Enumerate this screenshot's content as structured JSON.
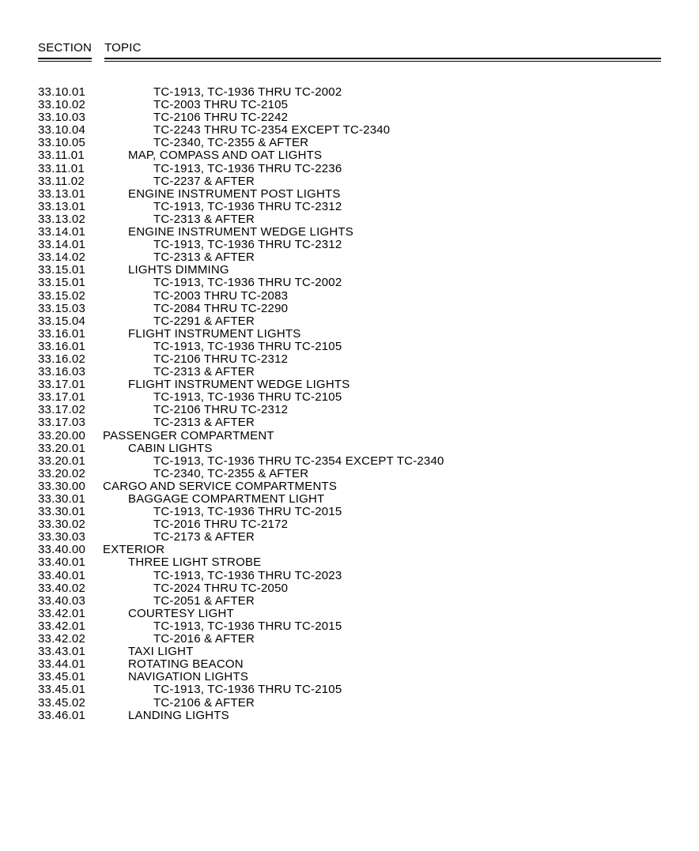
{
  "header": {
    "section_label": "SECTION",
    "topic_label": "TOPIC"
  },
  "font": {
    "family": "Arial Narrow",
    "size_pt": 11,
    "color": "#000000",
    "background": "#ffffff"
  },
  "rows": [
    {
      "section": "33.10.01",
      "indent": 2,
      "topic": "TC-1913, TC-1936 THRU TC-2002"
    },
    {
      "section": "33.10.02",
      "indent": 2,
      "topic": "TC-2003 THRU TC-2105"
    },
    {
      "section": "33.10.03",
      "indent": 2,
      "topic": "TC-2106 THRU TC-2242"
    },
    {
      "section": "33.10.04",
      "indent": 2,
      "topic": "TC-2243 THRU TC-2354 EXCEPT TC-2340"
    },
    {
      "section": "33.10.05",
      "indent": 2,
      "topic": "TC-2340, TC-2355 & AFTER"
    },
    {
      "section": "33.11.01",
      "indent": 1,
      "topic": "MAP, COMPASS AND OAT LIGHTS"
    },
    {
      "section": "33.11.01",
      "indent": 2,
      "topic": "TC-1913, TC-1936 THRU TC-2236"
    },
    {
      "section": "33.11.02",
      "indent": 2,
      "topic": "TC-2237 & AFTER"
    },
    {
      "section": "33.13.01",
      "indent": 1,
      "topic": "ENGINE INSTRUMENT POST LIGHTS"
    },
    {
      "section": "33.13.01",
      "indent": 2,
      "topic": "TC-1913, TC-1936 THRU TC-2312"
    },
    {
      "section": "33.13.02",
      "indent": 2,
      "topic": "TC-2313 & AFTER"
    },
    {
      "section": "33.14.01",
      "indent": 1,
      "topic": "ENGINE INSTRUMENT WEDGE LIGHTS"
    },
    {
      "section": "33.14.01",
      "indent": 2,
      "topic": "TC-1913, TC-1936 THRU TC-2312"
    },
    {
      "section": "33.14.02",
      "indent": 2,
      "topic": "TC-2313 & AFTER"
    },
    {
      "section": "33.15.01",
      "indent": 1,
      "topic": "LIGHTS DIMMING"
    },
    {
      "section": "33.15.01",
      "indent": 2,
      "topic": "TC-1913, TC-1936 THRU TC-2002"
    },
    {
      "section": "33.15.02",
      "indent": 2,
      "topic": "TC-2003 THRU TC-2083"
    },
    {
      "section": "33.15.03",
      "indent": 2,
      "topic": "TC-2084 THRU TC-2290"
    },
    {
      "section": "33.15.04",
      "indent": 2,
      "topic": "TC-2291 & AFTER"
    },
    {
      "section": "33.16.01",
      "indent": 1,
      "topic": "FLIGHT INSTRUMENT LIGHTS"
    },
    {
      "section": "33.16.01",
      "indent": 2,
      "topic": "TC-1913, TC-1936 THRU TC-2105"
    },
    {
      "section": "33.16.02",
      "indent": 2,
      "topic": "TC-2106 THRU TC-2312"
    },
    {
      "section": "33.16.03",
      "indent": 2,
      "topic": "TC-2313 & AFTER"
    },
    {
      "section": "33.17.01",
      "indent": 1,
      "topic": "FLIGHT INSTRUMENT WEDGE LIGHTS"
    },
    {
      "section": "33.17.01",
      "indent": 2,
      "topic": "TC-1913, TC-1936 THRU TC-2105"
    },
    {
      "section": "33.17.02",
      "indent": 2,
      "topic": "TC-2106 THRU TC-2312"
    },
    {
      "section": "33.17.03",
      "indent": 2,
      "topic": "TC-2313 & AFTER"
    },
    {
      "section": "33.20.00",
      "indent": 0,
      "topic": "PASSENGER COMPARTMENT"
    },
    {
      "section": "33.20.01",
      "indent": 1,
      "topic": "CABIN LIGHTS"
    },
    {
      "section": "33.20.01",
      "indent": 2,
      "topic": "TC-1913, TC-1936 THRU TC-2354 EXCEPT TC-2340"
    },
    {
      "section": "33.20.02",
      "indent": 2,
      "topic": "TC-2340, TC-2355 & AFTER"
    },
    {
      "section": "33.30.00",
      "indent": 0,
      "topic": "CARGO AND SERVICE COMPARTMENTS"
    },
    {
      "section": "33.30.01",
      "indent": 1,
      "topic": "BAGGAGE COMPARTMENT LIGHT"
    },
    {
      "section": "33.30.01",
      "indent": 2,
      "topic": "TC-1913, TC-1936 THRU TC-2015"
    },
    {
      "section": "33.30.02",
      "indent": 2,
      "topic": "TC-2016 THRU TC-2172"
    },
    {
      "section": "33.30.03",
      "indent": 2,
      "topic": "TC-2173 & AFTER"
    },
    {
      "section": "33.40.00",
      "indent": 0,
      "topic": "EXTERIOR"
    },
    {
      "section": "33.40.01",
      "indent": 1,
      "topic": "THREE LIGHT STROBE"
    },
    {
      "section": "33.40.01",
      "indent": 2,
      "topic": "TC-1913, TC-1936 THRU TC-2023"
    },
    {
      "section": "33.40.02",
      "indent": 2,
      "topic": "TC-2024 THRU TC-2050"
    },
    {
      "section": "33.40.03",
      "indent": 2,
      "topic": "TC-2051 & AFTER"
    },
    {
      "section": "33.42.01",
      "indent": 1,
      "topic": "COURTESY LIGHT"
    },
    {
      "section": "33.42.01",
      "indent": 2,
      "topic": "TC-1913, TC-1936 THRU TC-2015"
    },
    {
      "section": "33.42.02",
      "indent": 2,
      "topic": "TC-2016 & AFTER"
    },
    {
      "section": "33.43.01",
      "indent": 1,
      "topic": "TAXI LIGHT"
    },
    {
      "section": "33.44.01",
      "indent": 1,
      "topic": "ROTATING BEACON"
    },
    {
      "section": "33.45.01",
      "indent": 1,
      "topic": "NAVIGATION LIGHTS"
    },
    {
      "section": "33.45.01",
      "indent": 2,
      "topic": "TC-1913, TC-1936 THRU TC-2105"
    },
    {
      "section": "33.45.02",
      "indent": 2,
      "topic": "TC-2106 & AFTER"
    },
    {
      "section": "33.46.01",
      "indent": 1,
      "topic": "LANDING LIGHTS"
    }
  ]
}
